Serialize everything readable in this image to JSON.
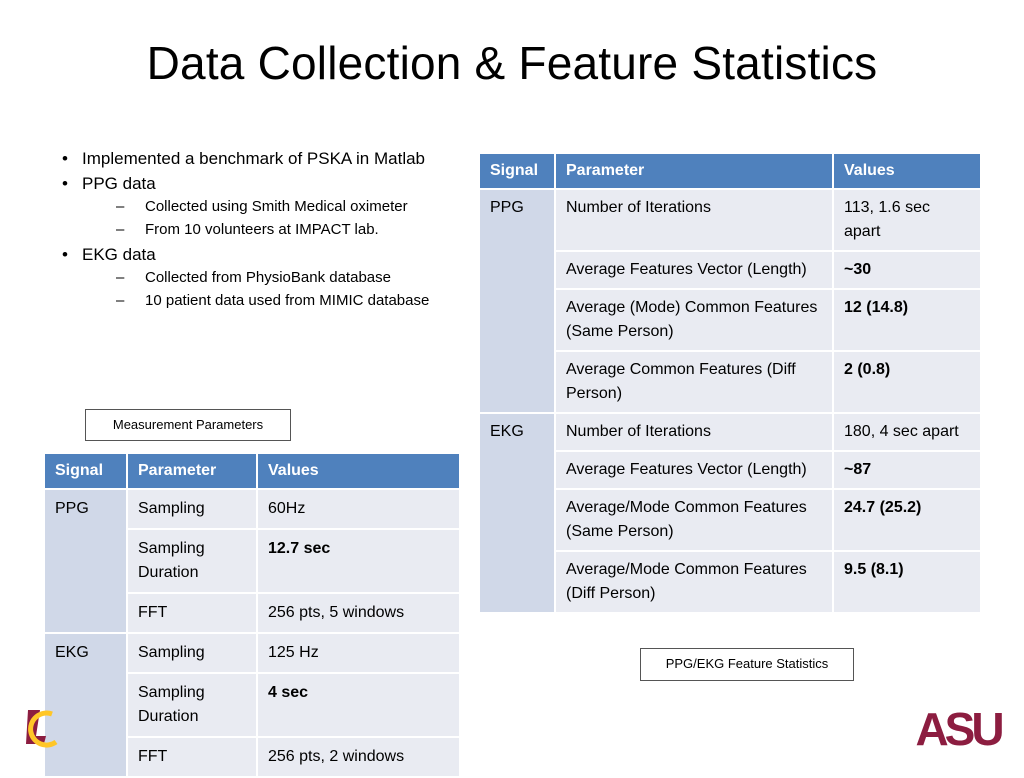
{
  "slide": {
    "title": "Data Collection & Feature Statistics"
  },
  "bullets": {
    "item1": "Implemented a benchmark of PSKA in Matlab",
    "item2": "PPG data",
    "item2_sub1": "Collected using Smith Medical oximeter",
    "item2_sub2": "From 10 volunteers at IMPACT lab.",
    "item3": "EKG data",
    "item3_sub1": "Collected from PhysioBank database",
    "item3_sub2": "10 patient data used from MIMIC database"
  },
  "captions": {
    "measurement": "Measurement Parameters",
    "feature": "PPG/EKG Feature Statistics"
  },
  "measurement_table": {
    "headers": [
      "Signal",
      "Parameter",
      "Values"
    ],
    "rows": [
      {
        "signal": "PPG",
        "parameter": "Sampling",
        "value": "60Hz"
      },
      {
        "signal": "",
        "parameter": "Sampling Duration",
        "value": "12.7 sec"
      },
      {
        "signal": "",
        "parameter": "FFT",
        "value": "256 pts, 5 windows"
      },
      {
        "signal": "EKG",
        "parameter": "Sampling",
        "value": "125 Hz"
      },
      {
        "signal": "",
        "parameter": "Sampling Duration",
        "value": "4 sec"
      },
      {
        "signal": "",
        "parameter": "FFT",
        "value": "256 pts, 2 windows"
      }
    ]
  },
  "feature_table": {
    "headers": [
      "Signal",
      "Parameter",
      "Values"
    ],
    "rows": [
      {
        "signal": "PPG",
        "parameter": "Number of Iterations",
        "value": "113, 1.6 sec apart"
      },
      {
        "signal": "",
        "parameter": "Average Features Vector (Length)",
        "value": "~30"
      },
      {
        "signal": "",
        "parameter": "Average (Mode) Common Features (Same Person)",
        "value": "12 (14.8)"
      },
      {
        "signal": "",
        "parameter": "Average Common Features (Diff Person)",
        "value": "2 (0.8)"
      },
      {
        "signal": "EKG",
        "parameter": "Number of Iterations",
        "value": "180, 4 sec apart"
      },
      {
        "signal": "",
        "parameter": "Average Features Vector (Length)",
        "value": "~87"
      },
      {
        "signal": "",
        "parameter": "Average/Mode Common Features (Same Person)",
        "value": "24.7 (25.2)"
      },
      {
        "signal": "",
        "parameter": "Average/Mode Common Features (Diff Person)",
        "value": "9.5 (8.1)"
      }
    ]
  },
  "logos": {
    "asu_text": "ASU",
    "asu_color": "#8c1d40",
    "left_logo_color": "#ffc627"
  }
}
